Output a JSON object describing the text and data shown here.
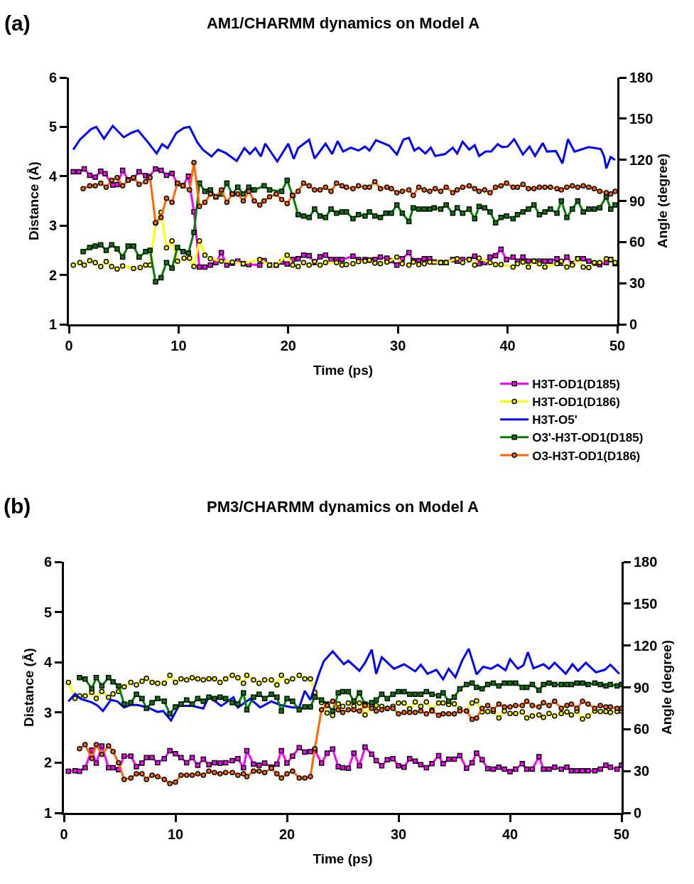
{
  "chart_data": [
    {
      "type": "line",
      "title": "AM1/CHARMM dynamics on Model A",
      "xlabel": "Time (ps)",
      "ylabel": "Distance (Å)",
      "y2label": "Angle (degree)",
      "annotations": [
        "(a)"
      ],
      "xlim": [
        0,
        50
      ],
      "xticks": [
        0,
        10,
        20,
        30,
        40,
        50
      ],
      "ylim": [
        1,
        6
      ],
      "yticks": [
        1,
        2,
        3,
        4,
        5,
        6
      ],
      "y2lim": [
        0,
        180
      ],
      "y2ticks": [
        0,
        30,
        60,
        90,
        120,
        150,
        180
      ],
      "grid": false,
      "legend": "bottom right",
      "series": [
        {
          "name": "H3T-OD1(D185)",
          "color": "#ff00ff",
          "marker": "square",
          "x": [
            0.4,
            0.9,
            1.4,
            1.9,
            2.4,
            2.9,
            3.3,
            4.0,
            4.4,
            4.9,
            5.4,
            5.9,
            6.4,
            7.0,
            7.3,
            7.9,
            8.4,
            8.9,
            9.4,
            9.9,
            10.4,
            10.9,
            11.4,
            11.9,
            12.4,
            12.9,
            13.4,
            13.9,
            14.4,
            14.9,
            15.4,
            15.9,
            16.4,
            17.4,
            17.8,
            18.3,
            18.9,
            19.4,
            19.9,
            20.4,
            20.9,
            21.4,
            21.9,
            22.4,
            22.9,
            23.4,
            23.9,
            24.4,
            24.9,
            25.9,
            26.4,
            27.0,
            27.4,
            27.9,
            28.4,
            29.0,
            29.4,
            29.9,
            30.4,
            31.0,
            31.4,
            31.9,
            32.4,
            32.9,
            33.3,
            33.9,
            34.4,
            35.0,
            35.4,
            35.9,
            36.5,
            37.0,
            37.4,
            37.9,
            38.4,
            38.9,
            39.4,
            39.9,
            40.5,
            40.9,
            41.4,
            41.9,
            42.4,
            42.9,
            43.4,
            43.9,
            44.5,
            44.9,
            45.4,
            45.9,
            46.4,
            46.9,
            47.4,
            47.9,
            48.4,
            49.0,
            49.4,
            49.8
          ],
          "values": [
            4.09,
            4.09,
            4.15,
            4.02,
            3.98,
            4.1,
            4.05,
            3.82,
            3.83,
            4.12,
            3.93,
            3.96,
            4.09,
            4.01,
            3.99,
            4.15,
            4.12,
            4.02,
            4.06,
            3.85,
            3.81,
            4.0,
            3.28,
            2.16,
            2.16,
            2.2,
            2.25,
            2.45,
            2.2,
            2.24,
            2.28,
            2.23,
            2.21,
            2.2,
            2.29,
            2.2,
            2.2,
            2.26,
            2.22,
            2.31,
            2.33,
            2.4,
            2.39,
            2.25,
            2.37,
            2.4,
            2.31,
            2.31,
            2.31,
            2.38,
            2.31,
            2.31,
            2.3,
            2.31,
            2.36,
            2.34,
            2.29,
            2.2,
            2.33,
            2.45,
            2.29,
            2.29,
            2.33,
            2.33,
            2.26,
            2.25,
            2.25,
            2.31,
            2.28,
            2.31,
            2.31,
            2.38,
            2.23,
            2.25,
            2.36,
            2.39,
            2.52,
            2.31,
            2.36,
            2.28,
            2.36,
            2.28,
            2.28,
            2.28,
            2.28,
            2.28,
            2.33,
            2.24,
            2.36,
            2.23,
            2.33,
            2.33,
            2.28,
            2.24,
            2.21,
            2.25,
            2.31,
            2.23
          ]
        },
        {
          "name": "H3T-OD1(D186)",
          "color": "#ffff00",
          "marker": "circle",
          "x": [
            0.4,
            1.0,
            1.4,
            1.9,
            2.4,
            2.9,
            3.4,
            3.9,
            4.4,
            4.9,
            5.9,
            6.5,
            7.0,
            7.4,
            7.9,
            8.4,
            8.9,
            9.4,
            9.9,
            10.5,
            11.0,
            11.4,
            11.9,
            12.4,
            12.9,
            13.9,
            14.9,
            15.9,
            17.4,
            18.3,
            18.9,
            19.9,
            20.4,
            20.9,
            21.4,
            21.9,
            22.4,
            22.9,
            23.4,
            24.4,
            24.9,
            25.3,
            25.9,
            26.4,
            27.0,
            27.4,
            27.9,
            28.4,
            29.0,
            29.9,
            30.4,
            31.0,
            31.4,
            31.9,
            32.4,
            32.9,
            33.9,
            34.4,
            35.4,
            35.9,
            36.5,
            37.0,
            37.4,
            38.4,
            38.9,
            39.4,
            40.5,
            40.9,
            41.4,
            41.9,
            42.4,
            42.9,
            43.4,
            44.5,
            44.9,
            45.4,
            45.9,
            46.4,
            46.9,
            47.4,
            47.9,
            48.4,
            49.0,
            49.4,
            49.8
          ],
          "values": [
            2.2,
            2.25,
            2.2,
            2.29,
            2.25,
            2.17,
            2.27,
            2.17,
            2.12,
            2.18,
            2.13,
            2.15,
            2.2,
            2.2,
            3.05,
            3.27,
            2.55,
            2.69,
            2.28,
            2.34,
            2.34,
            2.17,
            2.69,
            2.4,
            2.33,
            2.28,
            2.26,
            2.23,
            2.31,
            2.2,
            2.2,
            2.4,
            2.2,
            2.17,
            2.25,
            2.2,
            2.27,
            2.2,
            2.25,
            2.25,
            2.2,
            2.21,
            2.23,
            2.27,
            2.28,
            2.3,
            2.24,
            2.23,
            2.26,
            2.36,
            2.23,
            2.2,
            2.26,
            2.21,
            2.23,
            2.26,
            2.25,
            2.25,
            2.33,
            2.25,
            2.31,
            2.2,
            2.34,
            2.25,
            2.21,
            2.21,
            2.16,
            2.23,
            2.26,
            2.16,
            2.28,
            2.23,
            2.16,
            2.23,
            2.28,
            2.16,
            2.2,
            2.33,
            2.16,
            2.15,
            2.25,
            2.25,
            2.33,
            2.31,
            2.25
          ]
        },
        {
          "name": "H3T-O5'",
          "color": "#0000ff",
          "marker": "none",
          "x": [
            0.4,
            1.0,
            2.0,
            2.5,
            3.2,
            4.0,
            5.0,
            5.7,
            6.3,
            7.2,
            8.0,
            8.5,
            9.0,
            9.8,
            10.5,
            11.0,
            11.7,
            12.2,
            13.0,
            13.6,
            14.3,
            15.3,
            16.0,
            16.5,
            17.0,
            17.5,
            17.9,
            19.0,
            20.0,
            20.5,
            20.9,
            21.9,
            22.4,
            23.4,
            24.0,
            24.5,
            25.0,
            25.7,
            26.4,
            27.0,
            27.4,
            28.0,
            29.2,
            29.9,
            30.5,
            31.0,
            31.5,
            31.9,
            32.5,
            33.0,
            33.4,
            34.3,
            35.0,
            35.4,
            35.9,
            36.5,
            37.0,
            37.4,
            38.0,
            38.5,
            39.1,
            39.5,
            40.0,
            40.6,
            41.4,
            42.0,
            42.5,
            43.2,
            43.6,
            44.4,
            45.0,
            45.5,
            46.1,
            47.4,
            48.5,
            48.8,
            49.0,
            49.4,
            49.8
          ],
          "values": [
            4.54,
            4.74,
            4.95,
            5.0,
            4.76,
            5.02,
            4.79,
            4.88,
            4.93,
            4.69,
            4.46,
            4.65,
            4.57,
            4.88,
            4.98,
            5.0,
            4.69,
            4.54,
            4.4,
            4.54,
            4.47,
            4.31,
            4.57,
            4.45,
            4.57,
            4.4,
            4.66,
            4.3,
            4.66,
            4.35,
            4.57,
            4.74,
            4.36,
            4.66,
            4.45,
            4.71,
            4.5,
            4.58,
            4.52,
            4.6,
            4.52,
            4.73,
            4.62,
            4.44,
            4.74,
            4.78,
            4.52,
            4.58,
            4.46,
            4.58,
            4.41,
            4.45,
            4.58,
            4.46,
            4.7,
            4.54,
            4.63,
            4.41,
            4.5,
            4.5,
            4.65,
            4.59,
            4.6,
            4.75,
            4.44,
            4.6,
            4.41,
            4.67,
            4.5,
            4.51,
            4.26,
            4.75,
            4.5,
            4.59,
            4.55,
            4.4,
            4.16,
            4.39,
            4.33
          ]
        },
        {
          "name": "O3'-H3T-OD1(D185)",
          "color": "#008000",
          "marker": "square",
          "axis": "y2",
          "x": [
            1.3,
            1.9,
            2.4,
            2.9,
            3.4,
            3.9,
            4.4,
            4.9,
            5.4,
            5.9,
            6.4,
            7.0,
            7.4,
            7.9,
            8.4,
            8.9,
            9.4,
            9.9,
            10.4,
            10.9,
            11.4,
            11.9,
            12.4,
            12.9,
            13.4,
            13.9,
            14.4,
            14.9,
            15.4,
            15.9,
            16.4,
            16.9,
            17.8,
            18.3,
            19.4,
            19.9,
            20.4,
            20.9,
            21.4,
            21.9,
            22.4,
            22.9,
            23.4,
            23.9,
            24.4,
            24.9,
            25.3,
            25.9,
            26.4,
            27.0,
            27.4,
            27.9,
            28.4,
            28.9,
            29.4,
            29.9,
            30.4,
            31.0,
            31.4,
            31.9,
            32.4,
            32.9,
            33.3,
            33.9,
            34.4,
            35.0,
            35.4,
            35.9,
            36.5,
            37.0,
            37.4,
            37.9,
            38.4,
            38.9,
            39.4,
            39.9,
            40.5,
            40.9,
            41.4,
            41.9,
            42.4,
            42.9,
            43.4,
            43.9,
            44.5,
            44.9,
            45.4,
            45.9,
            46.4,
            46.9,
            47.4,
            47.9,
            48.4,
            49.0,
            49.4,
            49.8
          ],
          "values": [
            53,
            56,
            57,
            58,
            54,
            58,
            55,
            49,
            57,
            57,
            49,
            53,
            54,
            31,
            34,
            45,
            41,
            56,
            53,
            52,
            67,
            103,
            97,
            98,
            93,
            95,
            103,
            95,
            100,
            95,
            100,
            98,
            101,
            98,
            97,
            105,
            94,
            80,
            79,
            78,
            84,
            79,
            78,
            84,
            81,
            82,
            82,
            77,
            80,
            79,
            82,
            79,
            78,
            81,
            81,
            87,
            81,
            75,
            85,
            84,
            84,
            84,
            85,
            84,
            87,
            81,
            85,
            81,
            84,
            77,
            86,
            85,
            82,
            74,
            78,
            79,
            77,
            80,
            82,
            84,
            87,
            80,
            82,
            84,
            81,
            90,
            78,
            84,
            90,
            82,
            84,
            84,
            85,
            93,
            84,
            87
          ]
        },
        {
          "name": "O3-H3T-OD1(D186)",
          "color": "#ff6600",
          "marker": "circle",
          "axis": "y2",
          "x": [
            1.3,
            1.9,
            2.4,
            2.9,
            3.4,
            3.9,
            4.4,
            4.9,
            5.4,
            5.9,
            6.4,
            7.0,
            7.4,
            7.9,
            8.4,
            8.9,
            9.4,
            9.9,
            10.4,
            11.0,
            11.4,
            11.9,
            12.4,
            12.9,
            13.4,
            13.9,
            14.4,
            14.9,
            15.4,
            15.9,
            16.4,
            16.9,
            17.4,
            17.8,
            18.3,
            18.9,
            19.4,
            19.9,
            20.4,
            20.9,
            21.4,
            21.9,
            22.4,
            22.9,
            23.4,
            23.9,
            24.4,
            24.9,
            25.3,
            25.9,
            26.4,
            27.0,
            27.4,
            27.9,
            28.4,
            29.0,
            29.4,
            29.9,
            30.4,
            31.0,
            31.4,
            31.9,
            32.4,
            32.9,
            33.4,
            33.9,
            34.4,
            35.0,
            35.4,
            35.9,
            36.5,
            37.0,
            37.4,
            37.9,
            38.4,
            38.9,
            39.4,
            39.9,
            40.5,
            40.9,
            41.4,
            41.9,
            42.4,
            42.9,
            43.4,
            43.9,
            44.5,
            44.9,
            45.4,
            45.9,
            46.4,
            46.9,
            47.4,
            47.9,
            48.4,
            49.0,
            49.4,
            49.8
          ],
          "values": [
            99,
            101,
            101,
            103,
            100,
            105,
            107,
            101,
            105,
            107,
            102,
            104,
            107,
            74,
            78,
            92,
            89,
            103,
            101,
            98,
            118,
            86,
            89,
            95,
            93,
            98,
            89,
            95,
            95,
            90,
            97,
            90,
            87,
            90,
            93,
            95,
            91,
            88,
            94,
            97,
            103,
            101,
            98,
            98,
            100,
            97,
            103,
            101,
            100,
            99,
            101,
            100,
            100,
            104,
            99,
            100,
            99,
            96,
            97,
            98,
            94,
            100,
            98,
            97,
            99,
            97,
            100,
            96,
            98,
            100,
            101,
            99,
            97,
            98,
            96,
            100,
            101,
            103,
            100,
            100,
            102,
            99,
            99,
            100,
            100,
            100,
            99,
            98,
            100,
            101,
            100,
            101,
            100,
            99,
            97,
            96,
            95,
            97
          ]
        }
      ]
    },
    {
      "type": "line",
      "title": "PM3/CHARMM dynamics on Model A",
      "xlabel": "Time (ps)",
      "ylabel": "Distance (Å)",
      "y2label": "Angle (degree)",
      "annotations": [
        "(b)"
      ],
      "xlim": [
        0,
        50
      ],
      "xticks": [
        0,
        10,
        20,
        30,
        40,
        50
      ],
      "ylim": [
        1,
        6
      ],
      "yticks": [
        1,
        2,
        3,
        4,
        5,
        6
      ],
      "y2lim": [
        0,
        180
      ],
      "y2ticks": [
        0,
        30,
        60,
        90,
        120,
        150,
        180
      ],
      "grid": false,
      "series": [
        {
          "color": "#ff00ff",
          "marker": "square",
          "x": [
            0.4,
            1.0,
            1.4,
            1.9,
            2.5,
            2.9,
            3.4,
            4.0,
            4.4,
            4.9,
            5.4,
            6.0,
            6.5,
            7.0,
            7.4,
            7.9,
            8.4,
            9.0,
            9.5,
            10.0,
            10.5,
            11.0,
            11.5,
            12.0,
            12.5,
            13.0,
            13.5,
            14.0,
            14.5,
            15.1,
            15.6,
            16.1,
            16.4,
            17.0,
            17.5,
            18.0,
            18.6,
            19.1,
            19.5,
            20.0,
            20.5,
            21.1,
            21.6,
            22.1,
            22.5,
            23.1,
            23.6,
            24.1,
            24.6,
            25.0,
            25.5,
            26.0,
            26.5,
            27.0,
            27.6,
            28.0,
            28.5,
            29.0,
            29.5,
            30.0,
            30.5,
            31.0,
            31.5,
            32.0,
            32.5,
            33.0,
            33.6,
            34.0,
            34.5,
            35.0,
            35.5,
            36.1,
            36.6,
            37.0,
            37.5,
            38.0,
            38.5,
            39.0,
            39.5,
            40.0,
            40.5,
            41.1,
            41.5,
            42.0,
            42.6,
            43.0,
            43.5,
            44.0,
            44.6,
            45.1,
            45.5,
            46.0,
            46.5,
            47.0,
            47.6,
            48.1,
            48.6,
            49.0,
            49.6,
            50.0
          ],
          "values": [
            1.83,
            1.84,
            1.83,
            1.9,
            2.25,
            1.99,
            2.33,
            1.9,
            1.9,
            1.86,
            2.13,
            2.13,
            1.92,
            1.99,
            2.1,
            2.1,
            2.0,
            2.08,
            2.24,
            2.18,
            2.1,
            2.0,
            2.1,
            1.95,
            2.07,
            1.96,
            2.0,
            1.99,
            2.0,
            2.04,
            2.08,
            1.9,
            2.24,
            1.97,
            1.95,
            1.99,
            1.91,
            1.97,
            2.24,
            1.99,
            2.13,
            2.3,
            2.21,
            2.22,
            2.25,
            1.99,
            2.19,
            2.27,
            1.92,
            1.9,
            1.89,
            2.19,
            1.94,
            2.31,
            2.17,
            2.04,
            1.94,
            2.06,
            2.08,
            1.94,
            1.91,
            2.08,
            2.03,
            1.96,
            1.9,
            1.98,
            2.14,
            1.98,
            2.07,
            2.07,
            2.14,
            1.89,
            2.0,
            2.19,
            2.06,
            1.88,
            1.87,
            1.91,
            1.87,
            1.82,
            1.87,
            1.98,
            1.87,
            1.87,
            2.12,
            1.87,
            1.87,
            1.91,
            1.87,
            1.91,
            1.84,
            1.84,
            1.84,
            1.84,
            1.84,
            1.87,
            1.95,
            1.91,
            1.87,
            1.95
          ]
        },
        {
          "color": "#ffff00",
          "marker": "circle",
          "x": [
            0.4,
            1.0,
            1.4,
            1.9,
            2.5,
            2.9,
            3.4,
            4.0,
            4.4,
            4.9,
            5.4,
            6.0,
            6.5,
            7.0,
            7.4,
            7.9,
            8.4,
            9.0,
            9.5,
            10.0,
            10.5,
            11.0,
            11.5,
            12.0,
            12.5,
            13.0,
            13.5,
            14.0,
            14.5,
            15.1,
            15.6,
            16.1,
            16.4,
            17.0,
            17.5,
            18.0,
            18.6,
            19.1,
            19.5,
            20.0,
            20.5,
            21.1,
            21.6,
            22.1,
            22.5,
            23.1,
            23.6,
            24.1,
            24.6,
            25.0,
            25.5,
            26.0,
            26.5,
            27.0,
            27.6,
            28.0,
            28.5,
            29.0,
            29.5,
            30.0,
            30.5,
            31.0,
            31.5,
            32.0,
            32.5,
            33.0,
            33.6,
            34.0,
            34.5,
            35.0,
            35.5,
            36.1,
            36.6,
            37.0,
            37.5,
            38.0,
            38.5,
            39.0,
            39.5,
            40.0,
            40.5,
            41.1,
            41.5,
            42.0,
            42.6,
            43.0,
            43.5,
            44.0,
            44.6,
            45.1,
            45.5,
            46.0,
            46.5,
            47.0,
            47.6,
            48.1,
            48.6,
            49.0,
            49.6,
            50.0
          ],
          "values": [
            3.6,
            3.28,
            3.33,
            3.33,
            3.4,
            3.28,
            3.42,
            3.3,
            3.37,
            3.42,
            3.51,
            3.6,
            3.55,
            3.62,
            3.68,
            3.6,
            3.58,
            3.58,
            3.74,
            3.6,
            3.67,
            3.65,
            3.69,
            3.67,
            3.65,
            3.67,
            3.67,
            3.6,
            3.67,
            3.74,
            3.69,
            3.58,
            3.74,
            3.65,
            3.58,
            3.65,
            3.65,
            3.55,
            3.74,
            3.62,
            3.67,
            3.74,
            3.67,
            3.67,
            3.4,
            3.2,
            2.99,
            2.94,
            3.17,
            3.12,
            3.19,
            3.12,
            3.19,
            2.95,
            3.14,
            3.14,
            3.12,
            3.08,
            3.12,
            3.19,
            3.19,
            3.07,
            3.21,
            3.12,
            3.21,
            3.05,
            3.19,
            3.19,
            3.16,
            3.17,
            3.07,
            3.03,
            3.19,
            3.23,
            3.01,
            3.02,
            3.02,
            2.89,
            3.03,
            2.98,
            2.98,
            3.01,
            2.89,
            2.93,
            2.95,
            2.9,
            2.98,
            2.93,
            2.98,
            3.01,
            2.95,
            3.03,
            2.87,
            2.93,
            3.03,
            3.02,
            3.02,
            3.0,
            3.02,
            3.03
          ]
        },
        {
          "color": "#0000ff",
          "marker": "none",
          "x": [
            0.4,
            1.0,
            1.5,
            2.5,
            3.0,
            3.5,
            4.2,
            4.8,
            5.4,
            6.0,
            6.6,
            7.5,
            8.4,
            8.9,
            9.6,
            10.3,
            11.5,
            12.5,
            13.0,
            14.1,
            15.2,
            15.6,
            16.7,
            17.6,
            18.6,
            19.4,
            20.5,
            21.1,
            21.6,
            22.1,
            22.9,
            23.3,
            24.1,
            25.1,
            25.5,
            26.5,
            27.0,
            27.6,
            28.0,
            28.5,
            29.6,
            30.5,
            31.5,
            32.0,
            32.6,
            33.4,
            34.0,
            34.5,
            35.1,
            35.7,
            36.3,
            37.0,
            37.6,
            38.3,
            38.9,
            39.6,
            40.0,
            40.7,
            41.2,
            41.6,
            42.1,
            43.0,
            43.5,
            44.0,
            45.0,
            45.6,
            46.1,
            46.8,
            47.7,
            48.5,
            49.0,
            49.8
          ],
          "values": [
            3.22,
            3.37,
            3.27,
            3.2,
            3.14,
            3.03,
            3.25,
            3.22,
            3.1,
            3.15,
            3.15,
            3.1,
            3.01,
            3.03,
            2.84,
            3.13,
            3.13,
            3.08,
            3.32,
            3.13,
            3.3,
            3.1,
            3.27,
            3.1,
            3.22,
            3.15,
            3.1,
            3.1,
            3.43,
            3.25,
            3.79,
            4.02,
            4.22,
            3.96,
            4.03,
            3.83,
            3.99,
            4.25,
            3.77,
            4.1,
            3.87,
            3.96,
            3.82,
            3.95,
            3.77,
            3.85,
            3.66,
            3.87,
            3.7,
            4.03,
            4.27,
            3.76,
            3.91,
            3.87,
            3.95,
            3.84,
            4.06,
            3.87,
            3.94,
            4.2,
            3.88,
            3.96,
            3.87,
            3.99,
            3.77,
            3.96,
            3.83,
            3.99,
            3.8,
            3.85,
            3.95,
            3.77
          ]
        },
        {
          "color": "#008000",
          "marker": "square",
          "axis": "y2",
          "x": [
            1.4,
            1.9,
            2.5,
            2.9,
            3.4,
            4.0,
            4.4,
            4.9,
            5.4,
            6.0,
            6.5,
            7.0,
            7.4,
            7.9,
            8.4,
            9.0,
            9.5,
            10.0,
            10.5,
            11.0,
            11.5,
            12.0,
            12.5,
            13.0,
            13.5,
            14.0,
            14.5,
            15.1,
            15.6,
            16.1,
            16.4,
            17.0,
            17.5,
            18.0,
            18.6,
            19.1,
            19.5,
            20.0,
            20.5,
            21.1,
            21.6,
            22.1,
            22.5,
            23.1,
            23.6,
            24.1,
            24.6,
            25.0,
            25.5,
            26.0,
            26.5,
            27.0,
            27.6,
            28.0,
            28.5,
            29.0,
            29.5,
            30.0,
            30.5,
            31.0,
            31.5,
            32.0,
            32.5,
            33.0,
            33.6,
            34.0,
            34.5,
            35.0,
            35.5,
            36.1,
            36.6,
            37.0,
            37.5,
            38.0,
            38.5,
            39.0,
            39.5,
            40.0,
            40.5,
            41.1,
            41.5,
            42.0,
            42.6,
            43.0,
            43.5,
            44.0,
            44.6,
            45.1,
            45.5,
            46.0,
            46.5,
            47.0,
            47.6,
            48.1,
            48.6,
            49.0,
            49.6,
            50.0
          ],
          "values": [
            97,
            96,
            89,
            97,
            91,
            97,
            94,
            91,
            78,
            79,
            85,
            82,
            75,
            79,
            82,
            80,
            71,
            76,
            78,
            81,
            78,
            82,
            80,
            83,
            82,
            83,
            82,
            79,
            78,
            86,
            74,
            83,
            85,
            82,
            85,
            83,
            73,
            82,
            80,
            74,
            76,
            76,
            83,
            81,
            78,
            73,
            86,
            87,
            87,
            80,
            86,
            78,
            79,
            81,
            85,
            82,
            85,
            87,
            87,
            85,
            85,
            85,
            87,
            85,
            84,
            86,
            80,
            83,
            89,
            92,
            93,
            90,
            89,
            92,
            93,
            91,
            93,
            93,
            93,
            90,
            90,
            92,
            88,
            92,
            93,
            92,
            92,
            92,
            92,
            93,
            93,
            92,
            93,
            92,
            91,
            92,
            91,
            92
          ]
        },
        {
          "color": "#ff6600",
          "marker": "circle",
          "axis": "y2",
          "x": [
            1.4,
            1.9,
            2.5,
            2.9,
            3.4,
            4.0,
            4.4,
            4.9,
            5.4,
            6.0,
            6.5,
            7.0,
            7.4,
            7.9,
            8.4,
            9.0,
            9.5,
            10.0,
            10.5,
            11.0,
            11.5,
            12.0,
            12.5,
            13.0,
            13.5,
            14.0,
            14.5,
            15.1,
            15.6,
            16.1,
            16.4,
            17.0,
            17.5,
            18.0,
            18.6,
            19.1,
            19.5,
            20.0,
            20.5,
            21.1,
            21.6,
            22.1,
            22.5,
            23.1,
            23.6,
            24.1,
            24.6,
            25.0,
            25.5,
            26.0,
            26.5,
            27.0,
            27.6,
            28.0,
            28.5,
            29.0,
            29.5,
            30.0,
            30.5,
            31.0,
            31.5,
            32.0,
            32.5,
            33.0,
            33.6,
            34.0,
            34.5,
            35.0,
            35.5,
            36.1,
            36.6,
            37.0,
            37.5,
            38.0,
            38.5,
            39.0,
            39.5,
            40.0,
            40.5,
            41.1,
            41.5,
            42.0,
            42.6,
            43.0,
            43.5,
            44.0,
            44.6,
            45.1,
            45.5,
            46.0,
            46.5,
            47.0,
            47.6,
            48.1,
            48.6,
            49.0,
            49.6,
            50.0
          ],
          "values": [
            46,
            49,
            39,
            49,
            42,
            48,
            44,
            36,
            24,
            25,
            28,
            28,
            24,
            27,
            26,
            24,
            21,
            22,
            27,
            27,
            27,
            28,
            27,
            30,
            29,
            28,
            29,
            29,
            27,
            28,
            26,
            30,
            30,
            29,
            32,
            28,
            25,
            28,
            30,
            25,
            25,
            26,
            46,
            74,
            77,
            80,
            74,
            72,
            74,
            74,
            73,
            77,
            75,
            73,
            74,
            75,
            75,
            71,
            72,
            72,
            72,
            73,
            71,
            73,
            70,
            71,
            71,
            71,
            73,
            73,
            67,
            68,
            75,
            77,
            74,
            78,
            76,
            76,
            77,
            77,
            80,
            77,
            76,
            79,
            77,
            80,
            75,
            77,
            78,
            75,
            80,
            78,
            75,
            77,
            76,
            76,
            75,
            75
          ]
        }
      ]
    }
  ]
}
